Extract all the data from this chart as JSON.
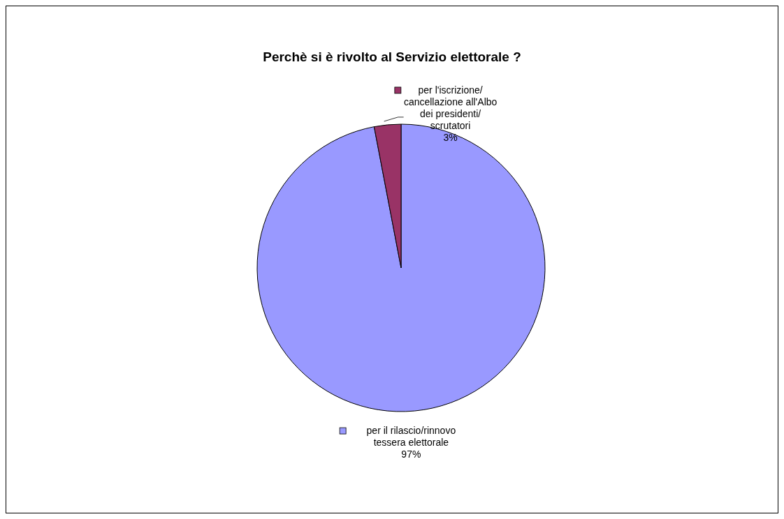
{
  "chart_data": {
    "type": "pie",
    "title": "Perchè si è rivolto al Servizio elettorale ?",
    "categories": [
      "per il rilascio/rinnovo tessera elettorale",
      "per l'iscrizione/ cancellazione all'Albo dei presidenti/ scrutatori"
    ],
    "values": [
      97,
      3
    ],
    "colors": [
      "#9999ff",
      "#993366"
    ],
    "value_labels": [
      "97%",
      "3%"
    ],
    "legend": "top right"
  }
}
